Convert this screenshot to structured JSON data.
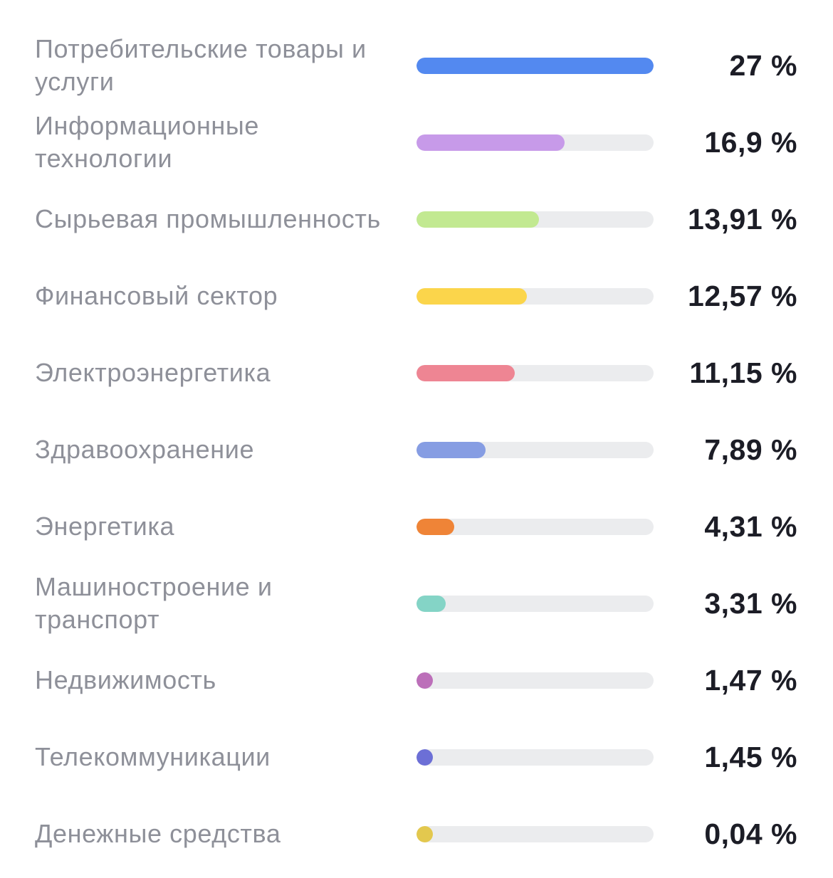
{
  "sectors": [
    {
      "label": "Потребительские товары и услуги",
      "value": "27 %",
      "percent": 27,
      "color": "#5389f0"
    },
    {
      "label": "Информационные технологии",
      "value": "16,9 %",
      "percent": 16.9,
      "color": "#c79ae9"
    },
    {
      "label": "Сырьевая промышленность",
      "value": "13,91 %",
      "percent": 13.91,
      "color": "#c2e991"
    },
    {
      "label": "Финансовый сектор",
      "value": "12,57 %",
      "percent": 12.57,
      "color": "#fbd54b"
    },
    {
      "label": "Электроэнергетика",
      "value": "11,15 %",
      "percent": 11.15,
      "color": "#ee8593"
    },
    {
      "label": "Здравоохранение",
      "value": "7,89 %",
      "percent": 7.89,
      "color": "#869de3"
    },
    {
      "label": "Энергетика",
      "value": "4,31 %",
      "percent": 4.31,
      "color": "#ef8437"
    },
    {
      "label": "Машиностроение и транспорт",
      "value": "3,31 %",
      "percent": 3.31,
      "color": "#84d4c6"
    },
    {
      "label": "Недвижимость",
      "value": "1,47 %",
      "percent": 1.47,
      "color": "#bc6fb9"
    },
    {
      "label": "Телекоммуникации",
      "value": "1,45 %",
      "percent": 1.45,
      "color": "#6c6fd6"
    },
    {
      "label": "Денежные средства",
      "value": "0,04 %",
      "percent": 0.04,
      "color": "#e3c84e"
    }
  ]
}
